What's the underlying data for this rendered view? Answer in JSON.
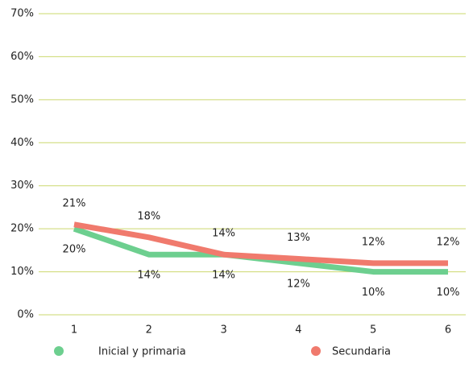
{
  "chart_data": {
    "type": "line",
    "categories": [
      "1",
      "2",
      "3",
      "4",
      "5",
      "6"
    ],
    "series": [
      {
        "name": "Inicial y primaria",
        "color": "#6dcf8f",
        "values": [
          20,
          14,
          14,
          12,
          10,
          10
        ],
        "value_labels": [
          "20%",
          "14%",
          "14%",
          "12%",
          "10%",
          "10%"
        ]
      },
      {
        "name": "Secundaria",
        "color": "#f07a6d",
        "values": [
          21,
          18,
          14,
          13,
          12,
          12
        ],
        "value_labels": [
          "21%",
          "18%",
          "14%",
          "13%",
          "12%",
          "12%"
        ]
      }
    ],
    "ylim": [
      0,
      70
    ],
    "yticks": [
      {
        "value": 0,
        "label": "0%"
      },
      {
        "value": 10,
        "label": "10%"
      },
      {
        "value": 20,
        "label": "20%"
      },
      {
        "value": 30,
        "label": "30%"
      },
      {
        "value": 40,
        "label": "40%"
      },
      {
        "value": 50,
        "label": "50%"
      },
      {
        "value": 60,
        "label": "60%"
      },
      {
        "value": 70,
        "label": "70%"
      }
    ],
    "grid": true,
    "grid_color": "#cbd86e",
    "legend": "bottom"
  }
}
